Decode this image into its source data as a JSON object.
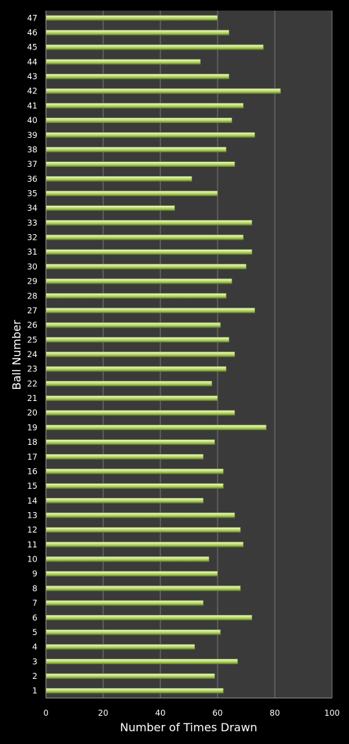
{
  "chart_data": {
    "type": "bar",
    "orientation": "horizontal",
    "xlabel": "Number of Times Drawn",
    "ylabel": "Ball Number",
    "xlim": [
      0,
      100
    ],
    "xticks": [
      0,
      20,
      40,
      60,
      80,
      100
    ],
    "grid": true,
    "legend": "none",
    "categories": [
      "1",
      "2",
      "3",
      "4",
      "5",
      "6",
      "7",
      "8",
      "9",
      "10",
      "11",
      "12",
      "13",
      "14",
      "15",
      "16",
      "17",
      "18",
      "19",
      "20",
      "21",
      "22",
      "23",
      "24",
      "25",
      "26",
      "27",
      "28",
      "29",
      "30",
      "31",
      "32",
      "33",
      "34",
      "35",
      "36",
      "37",
      "38",
      "39",
      "40",
      "41",
      "42",
      "43",
      "44",
      "45",
      "46",
      "47"
    ],
    "values": [
      62,
      59,
      67,
      52,
      61,
      72,
      55,
      68,
      60,
      57,
      69,
      68,
      66,
      55,
      62,
      62,
      55,
      59,
      77,
      66,
      60,
      58,
      63,
      66,
      64,
      61,
      73,
      63,
      65,
      70,
      72,
      69,
      72,
      45,
      60,
      51,
      66,
      63,
      73,
      65,
      69,
      82,
      64,
      54,
      76,
      64,
      60
    ],
    "colors": {
      "plot_background": "#3a3a3a",
      "page_background": "#000000",
      "bar_fill": "#b5d86a",
      "bar_highlight": "#ecf8c0",
      "bar_shadow": "#5e7a22",
      "gridline": "#7a7a7a",
      "text": "#ffffff"
    }
  }
}
